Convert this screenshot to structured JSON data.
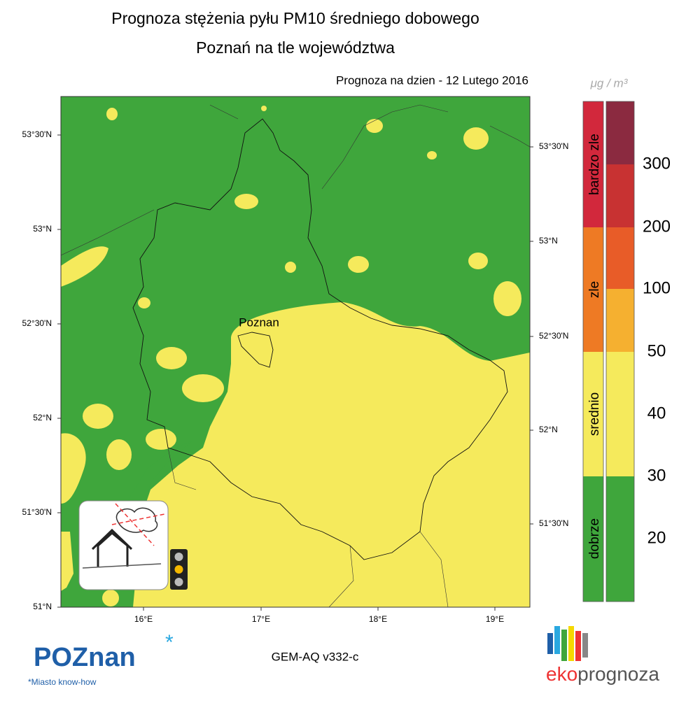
{
  "header": {
    "title_line1": "Prognoza stężenia pyłu PM10 średniego dobowego",
    "title_line2": "Poznań na tle województwa",
    "forecast_date": "Prognoza na dzien -  12 Lutego 2016"
  },
  "map": {
    "city": "Poznan",
    "lat_labels_left": [
      "53°30'N",
      "53°N",
      "52°30'N",
      "52°N",
      "51°30'N",
      "51°N"
    ],
    "lat_labels_right": [
      "53°30'N",
      "53°N",
      "52°30'N",
      "52°N",
      "51°30'N"
    ],
    "lon_labels": [
      "16°E",
      "17°E",
      "18°E",
      "19°E"
    ]
  },
  "legend": {
    "unit": "μg / m³",
    "categories": [
      "bardzo zle",
      "zle",
      "srednio",
      "dobrze"
    ],
    "levels": [
      300,
      200,
      100,
      50,
      40,
      30,
      20
    ]
  },
  "footer": {
    "logo": "POZnan",
    "slogan": "*Miasto know-how",
    "model": "GEM-AQ v332-c",
    "brand_prefix": "eko",
    "brand_rest": "prognoza"
  }
}
